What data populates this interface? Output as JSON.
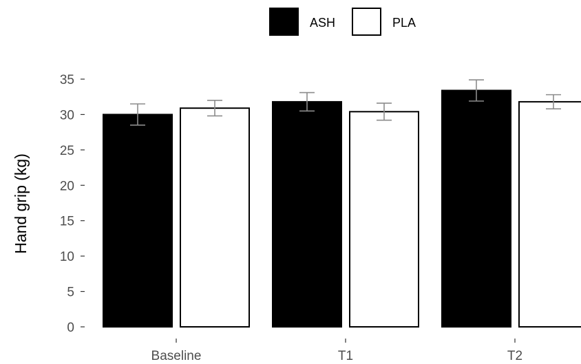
{
  "chart_data": {
    "type": "bar",
    "categories": [
      "Baseline",
      "T1",
      "T2"
    ],
    "series": [
      {
        "name": "ASH",
        "fill": "#000000",
        "stroke": "#000000",
        "values": [
          30.0,
          31.8,
          33.4
        ],
        "error": [
          1.5,
          1.3,
          1.5
        ]
      },
      {
        "name": "PLA",
        "fill": "#ffffff",
        "stroke": "#000000",
        "values": [
          30.9,
          30.4,
          31.8
        ],
        "error": [
          1.1,
          1.2,
          1.0
        ]
      }
    ],
    "title": "",
    "xlabel": "",
    "ylabel": "Hand grip (kg)",
    "ylim": [
      0,
      35
    ],
    "yticks": [
      0,
      5,
      10,
      15,
      20,
      25,
      30,
      35
    ],
    "grid": false,
    "legend_position": "top",
    "errorbar_color": "#8c8c8c"
  }
}
